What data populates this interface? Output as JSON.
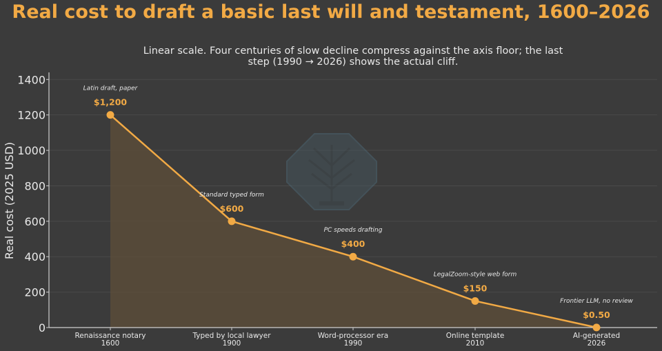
{
  "chart_data": {
    "type": "line",
    "title": "Real cost to draft a basic last will and testament, 1600–2026",
    "subtitle_lines": [
      "Linear scale. Four centuries of slow decline compress against the axis floor; the last",
      "step (1990 → 2026) shows the actual cliff."
    ],
    "ylabel": "Real cost (2025 USD)",
    "xlabel": "",
    "ylim": [
      0,
      1440
    ],
    "yticks": [
      0,
      200,
      400,
      600,
      800,
      1000,
      1200,
      1400
    ],
    "grid": true,
    "legend": "none",
    "categories": [
      {
        "name": "Renaissance notary",
        "year": "1600"
      },
      {
        "name": "Typed by local lawyer",
        "year": "1900"
      },
      {
        "name": "Word-processor era",
        "year": "1990"
      },
      {
        "name": "Online template",
        "year": "2010"
      },
      {
        "name": "AI-generated",
        "year": "2026"
      }
    ],
    "series": [
      {
        "values": [
          1200,
          600,
          400,
          150,
          0.5
        ],
        "value_labels": [
          "$1,200",
          "$600",
          "$400",
          "$150",
          "$0.50"
        ],
        "annotations": [
          "Latin draft, paper",
          "Standard typed form",
          "PC speeds drafting",
          "LegalZoom-style web form",
          "Frontier LLM, no review"
        ]
      }
    ],
    "colors": {
      "background": "#3b3b3b",
      "line": "#f2aa45",
      "fill": "#5a4c3a",
      "grid": "#4a4a4a",
      "axis": "#cfcfcf",
      "text": "#e8e8e8",
      "watermark": "#4e6a78"
    }
  }
}
